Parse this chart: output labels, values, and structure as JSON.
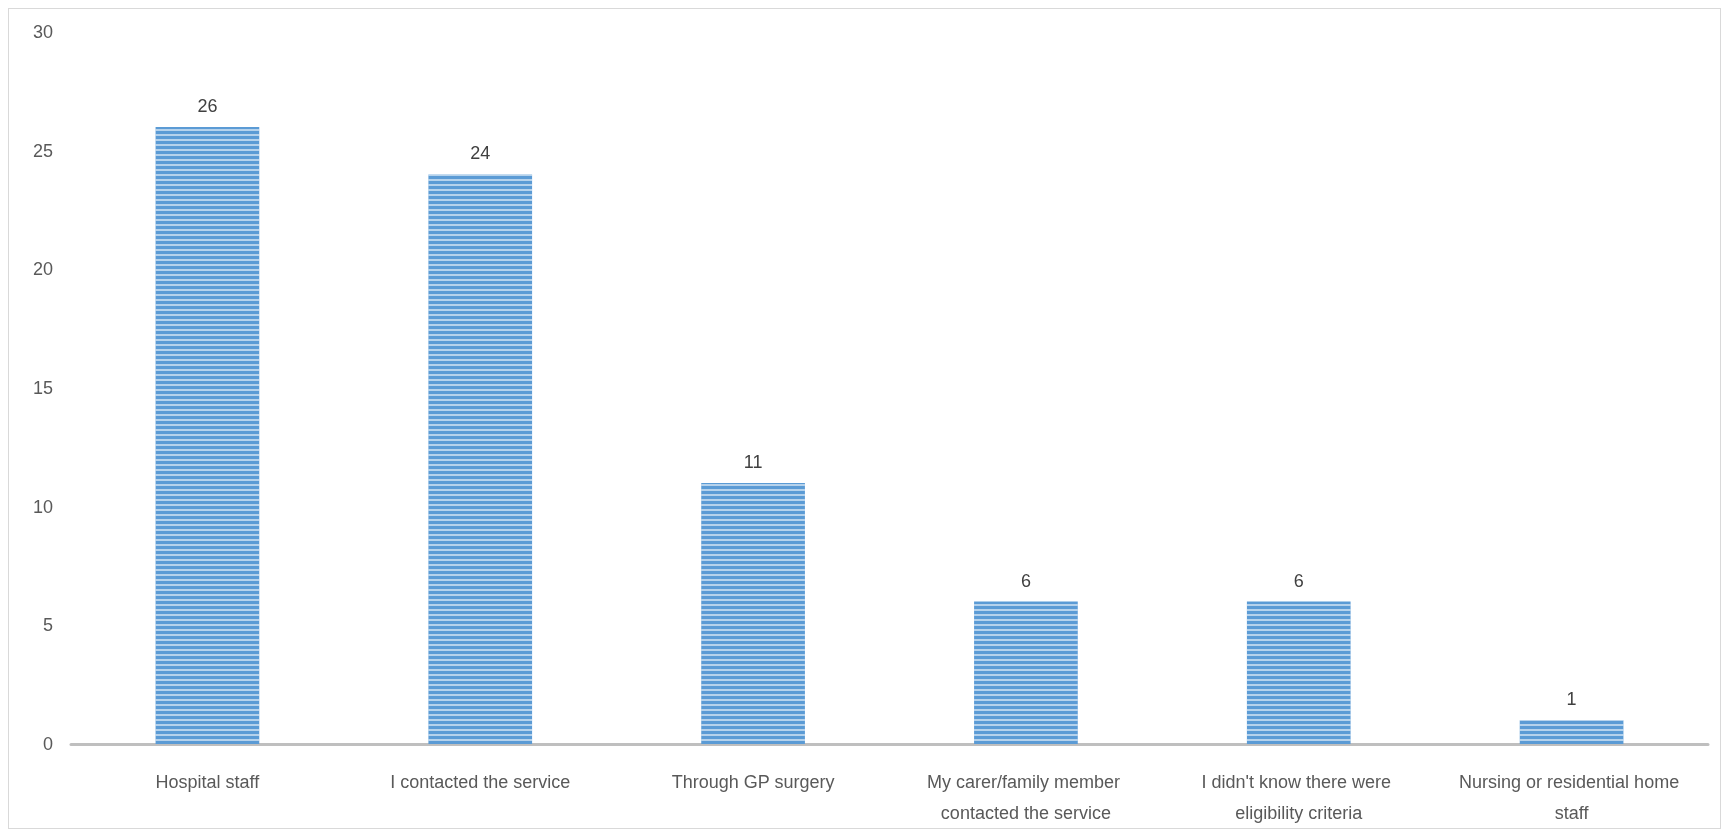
{
  "chart_data": {
    "type": "bar",
    "categories": [
      "Hospital staff",
      "I contacted the service",
      "Through GP surgery",
      "My carer/family member contacted the service",
      "I didn't know there were eligibility criteria",
      "Nursing or residential home staff"
    ],
    "values": [
      26,
      24,
      11,
      6,
      6,
      1
    ],
    "color": "#5b9bd5",
    "ylim": [
      0,
      30
    ],
    "yticks": [
      0,
      5,
      10,
      15,
      20,
      25,
      30
    ],
    "data_labels": true
  }
}
